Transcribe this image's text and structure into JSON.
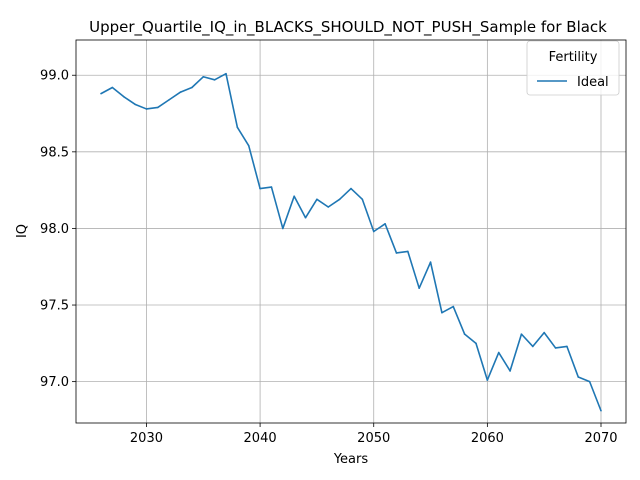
{
  "chart_data": {
    "type": "line",
    "title": "Upper_Quartile_IQ_in_BLACKS_SHOULD_NOT_PUSH_Sample for Black",
    "xlabel": "Years",
    "ylabel": "IQ",
    "xlim": [
      2023.8,
      2072.2
    ],
    "ylim": [
      96.73,
      99.23
    ],
    "xticks": [
      2030,
      2040,
      2050,
      2060,
      2070
    ],
    "yticks": [
      97.0,
      97.5,
      98.0,
      98.5,
      99.0
    ],
    "grid": true,
    "legend": {
      "title": "Fertility",
      "position": "top-right"
    },
    "x": [
      2026,
      2027,
      2028,
      2029,
      2030,
      2031,
      2032,
      2033,
      2034,
      2035,
      2036,
      2037,
      2038,
      2039,
      2040,
      2041,
      2042,
      2043,
      2044,
      2045,
      2046,
      2047,
      2048,
      2049,
      2050,
      2051,
      2052,
      2053,
      2054,
      2055,
      2056,
      2057,
      2058,
      2059,
      2060,
      2061,
      2062,
      2063,
      2064,
      2065,
      2066,
      2067,
      2068,
      2069,
      2070
    ],
    "series": [
      {
        "name": "Ideal",
        "color": "#1f77b4",
        "values": [
          98.88,
          98.92,
          98.86,
          98.81,
          98.78,
          98.79,
          98.84,
          98.89,
          98.92,
          98.99,
          98.97,
          99.01,
          98.66,
          98.54,
          98.26,
          98.27,
          98.0,
          98.21,
          98.07,
          98.19,
          98.14,
          98.19,
          98.26,
          98.19,
          97.98,
          98.03,
          97.84,
          97.85,
          97.61,
          97.78,
          97.45,
          97.49,
          97.31,
          97.25,
          97.01,
          97.19,
          97.07,
          97.31,
          97.23,
          97.32,
          97.22,
          97.23,
          97.03,
          97.0,
          96.81
        ]
      }
    ]
  }
}
